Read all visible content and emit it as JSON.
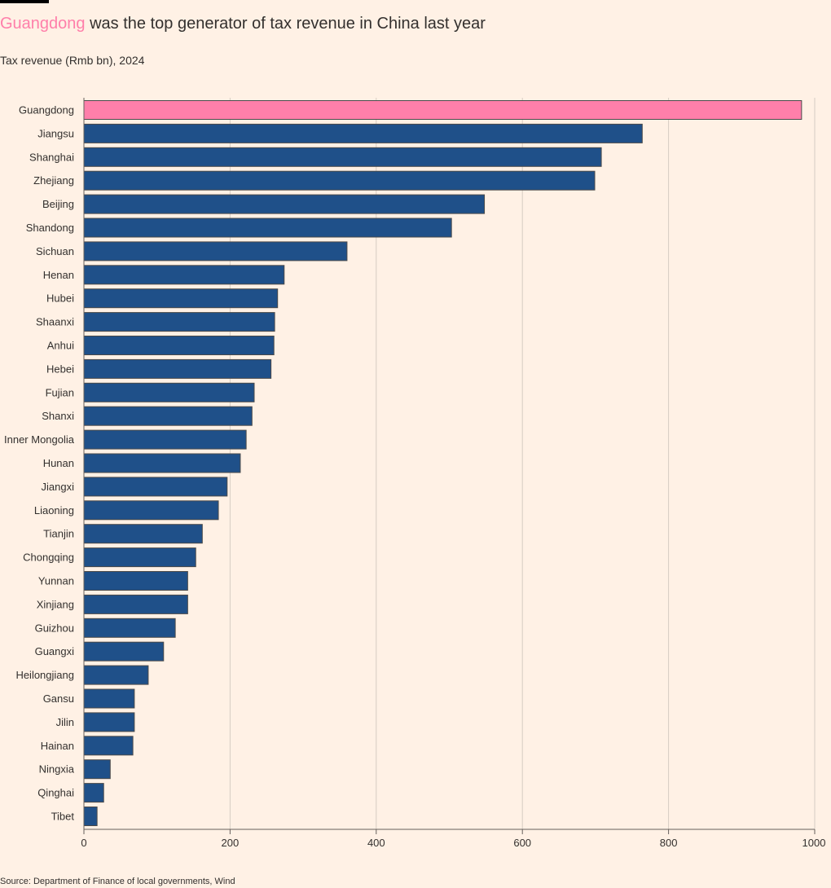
{
  "header": {
    "title_highlight": "Guangdong",
    "title_rest": " was the top generator of tax revenue in China last year",
    "subtitle": "Tax revenue (Rmb bn), 2024"
  },
  "footer": {
    "source": "Source: Department of Finance of local governments, Wind"
  },
  "colors": {
    "background": "#fff1e5",
    "highlight": "#ff7faa",
    "bar": "#1f5089",
    "bar_stroke": "#4a4a4a",
    "grid": "#d6ccc2",
    "axis": "#66605c"
  },
  "chart_data": {
    "type": "bar",
    "orientation": "horizontal",
    "title": "Guangdong was the top generator of tax revenue in China last year",
    "subtitle": "Tax revenue (Rmb bn), 2024",
    "xlabel": "",
    "ylabel": "",
    "xlim": [
      0,
      1000
    ],
    "xticks": [
      "0",
      "200",
      "400",
      "600",
      "800",
      "1000"
    ],
    "grid": true,
    "highlight_category": "Guangdong",
    "categories": [
      "Guangdong",
      "Jiangsu",
      "Shanghai",
      "Zhejiang",
      "Beijing",
      "Shandong",
      "Sichuan",
      "Henan",
      "Hubei",
      "Shaanxi",
      "Anhui",
      "Hebei",
      "Fujian",
      "Shanxi",
      "Inner Mongolia",
      "Hunan",
      "Jiangxi",
      "Liaoning",
      "Tianjin",
      "Chongqing",
      "Yunnan",
      "Xinjiang",
      "Guizhou",
      "Guangxi",
      "Heilongjiang",
      "Gansu",
      "Jilin",
      "Hainan",
      "Ningxia",
      "Qinghai",
      "Tibet"
    ],
    "values": [
      982,
      764,
      708,
      699,
      548,
      503,
      360,
      274,
      265,
      261,
      260,
      256,
      233,
      230,
      222,
      214,
      196,
      184,
      162,
      153,
      142,
      142,
      125,
      109,
      88,
      69,
      69,
      67,
      36,
      27,
      18
    ]
  }
}
